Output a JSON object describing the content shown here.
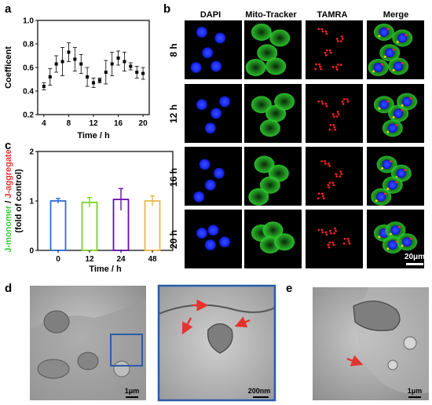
{
  "panels": {
    "a": "a",
    "b": "b",
    "c": "c",
    "d": "d",
    "e": "e"
  },
  "colors": {
    "dapi": "#1a2cff",
    "mito": "#2fd12f",
    "tamra": "#ff2020",
    "bar_0": "#2a6fd6",
    "bar_12": "#7ed321",
    "bar_24": "#6a0dad",
    "bar_48": "#e8b84a",
    "em_box": "#2a5ca8",
    "em_arrow": "#e3342f"
  },
  "chart_data": [
    {
      "type": "scatter",
      "panel": "a",
      "x": [
        4,
        5,
        6,
        7,
        8,
        9,
        10,
        11,
        12,
        13,
        14,
        15,
        16,
        17,
        18,
        19,
        20
      ],
      "y": [
        0.44,
        0.52,
        0.63,
        0.65,
        0.73,
        0.67,
        0.63,
        0.52,
        0.47,
        0.49,
        0.56,
        0.63,
        0.68,
        0.65,
        0.61,
        0.56,
        0.55
      ],
      "err": [
        0.03,
        0.07,
        0.07,
        0.12,
        0.08,
        0.1,
        0.08,
        0.08,
        0.04,
        0.02,
        0.1,
        0.1,
        0.06,
        0.08,
        0.03,
        0.05,
        0.05
      ],
      "xlabel": "Time / h",
      "ylabel": "Coefficent",
      "xlim": [
        3,
        21
      ],
      "ylim": [
        0.2,
        1.0
      ],
      "xticks": [
        "4",
        "8",
        "12",
        "16",
        "20"
      ],
      "yticks": [
        "0.2",
        "0.4",
        "0.6",
        "0.8",
        "1.0"
      ]
    },
    {
      "type": "bar",
      "panel": "c",
      "categories": [
        "0",
        "12",
        "24",
        "48"
      ],
      "values": [
        1.0,
        0.97,
        1.03,
        1.0
      ],
      "err": [
        0.05,
        0.1,
        0.22,
        0.1
      ],
      "xlabel": "Time / h",
      "ylabel_part1": "J-monomer",
      "ylabel_sep": " / ",
      "ylabel_part2": "J-aggregate",
      "ylabel_line2": "(fold of control)",
      "ylim": [
        0,
        2
      ],
      "yticks": [
        "0",
        "1",
        "2"
      ]
    }
  ],
  "microscopy": {
    "columns": [
      "DAPI",
      "Mito-Tracker",
      "TAMRA",
      "Merge"
    ],
    "rows": [
      "8 h",
      "12 h",
      "16 h",
      "20 h"
    ],
    "scale_bar": "20μm"
  },
  "em": {
    "d_left_scale": "1μm",
    "d_zoom_scale": "200nm",
    "e_scale": "1μm"
  }
}
